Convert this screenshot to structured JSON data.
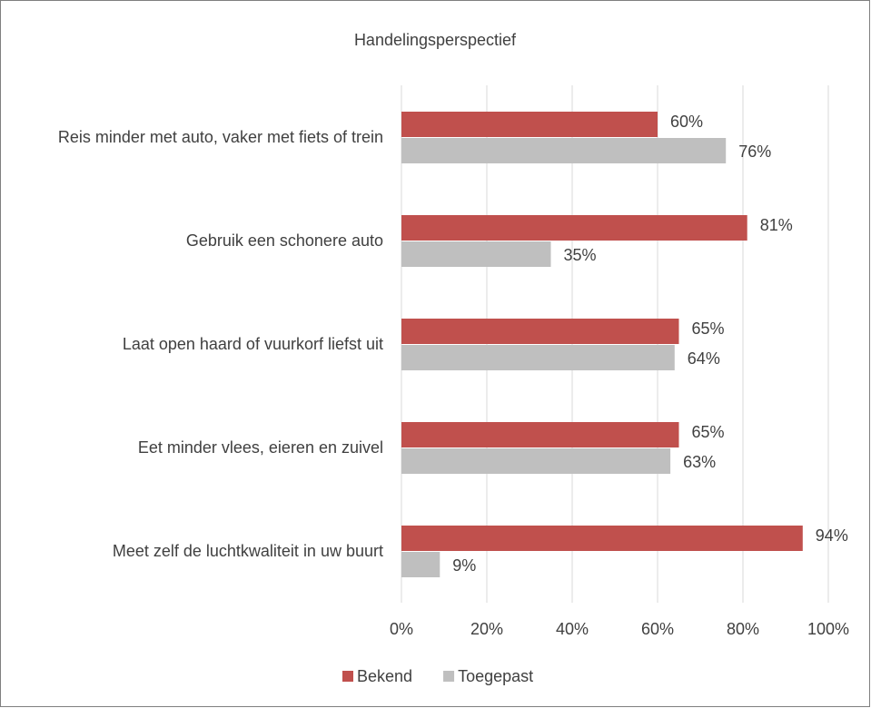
{
  "chart_data": {
    "type": "bar",
    "orientation": "horizontal",
    "title": "Handelingsperspectief",
    "categories": [
      "Reis minder met auto, vaker met fiets of trein",
      "Gebruik een schonere auto",
      "Laat open haard of vuurkorf liefst uit",
      "Eet minder vlees, eieren en zuivel",
      "Meet zelf de luchtkwaliteit in uw buurt"
    ],
    "series": [
      {
        "name": "Bekend",
        "color": "#c0504d",
        "values": [
          60,
          81,
          65,
          65,
          94
        ],
        "value_labels": [
          "60%",
          "81%",
          "65%",
          "65%",
          "94%"
        ]
      },
      {
        "name": "Toegepast",
        "color": "#bfbfbf",
        "values": [
          76,
          35,
          64,
          63,
          9
        ],
        "value_labels": [
          "76%",
          "35%",
          "64%",
          "63%",
          "9%"
        ]
      }
    ],
    "xlim": [
      0,
      100
    ],
    "xticks": [
      {
        "value": 0,
        "label": "0%"
      },
      {
        "value": 20,
        "label": "20%"
      },
      {
        "value": 40,
        "label": "40%"
      },
      {
        "value": 60,
        "label": "60%"
      },
      {
        "value": 80,
        "label": "80%"
      },
      {
        "value": 100,
        "label": "100%"
      }
    ],
    "grid": true,
    "legend": "bottom"
  }
}
